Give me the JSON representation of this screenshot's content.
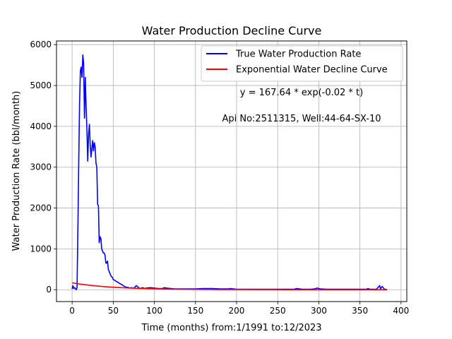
{
  "chart_data": {
    "type": "line",
    "title": "Water Production Decline Curve",
    "xlabel": "Time (months) from:1/1991 to:12/2023",
    "ylabel": "Water Production Rate (bbl/month)",
    "xlim": [
      -19,
      407
    ],
    "ylim": [
      -290,
      6090
    ],
    "xticks": [
      0,
      50,
      100,
      150,
      200,
      250,
      300,
      350,
      400
    ],
    "yticks": [
      0,
      1000,
      2000,
      3000,
      4000,
      5000,
      6000
    ],
    "grid": true,
    "legend_position": "top-right",
    "annotations": [
      "y = 167.64 * exp(-0.02 * t)",
      "Api No:2511315, Well:44-64-SX-10"
    ],
    "series": [
      {
        "name": "True Water Production Rate",
        "color": "#0000ff",
        "x": [
          0,
          1,
          2,
          3,
          4,
          5,
          6,
          7,
          8,
          9,
          10,
          11,
          12,
          13,
          14,
          15,
          16,
          17,
          18,
          19,
          20,
          21,
          22,
          23,
          24,
          25,
          26,
          27,
          28,
          29,
          30,
          31,
          32,
          33,
          34,
          35,
          36,
          37,
          38,
          39,
          40,
          41,
          42,
          43,
          44,
          45,
          46,
          47,
          48,
          49,
          50,
          52,
          54,
          56,
          58,
          60,
          62,
          64,
          66,
          68,
          70,
          72,
          74,
          76,
          78,
          80,
          82,
          84,
          86,
          88,
          90,
          95,
          100,
          105,
          110,
          112,
          115,
          120,
          125,
          130,
          140,
          150,
          160,
          170,
          180,
          190,
          192,
          200,
          220,
          250,
          270,
          273,
          280,
          290,
          295,
          298,
          302,
          310,
          330,
          350,
          358,
          360,
          362,
          370,
          374,
          375,
          377,
          380,
          383
        ],
        "values": [
          20,
          100,
          30,
          50,
          30,
          0,
          50,
          1500,
          3000,
          4500,
          5350,
          5450,
          5200,
          5750,
          5550,
          4200,
          5200,
          4500,
          3900,
          3150,
          3800,
          4050,
          3550,
          3250,
          3450,
          3650,
          3400,
          3600,
          3500,
          3100,
          3000,
          2100,
          2050,
          1150,
          1300,
          1250,
          1000,
          950,
          900,
          900,
          850,
          650,
          650,
          700,
          500,
          450,
          400,
          350,
          320,
          300,
          250,
          230,
          200,
          180,
          150,
          130,
          100,
          80,
          60,
          60,
          40,
          50,
          40,
          50,
          100,
          70,
          30,
          40,
          50,
          30,
          40,
          50,
          40,
          30,
          30,
          50,
          40,
          30,
          20,
          20,
          20,
          20,
          30,
          30,
          20,
          20,
          30,
          10,
          10,
          10,
          10,
          30,
          10,
          10,
          20,
          40,
          20,
          10,
          10,
          10,
          10,
          30,
          10,
          10,
          100,
          20,
          80,
          10,
          5
        ]
      },
      {
        "name": "Exponential Water Decline Curve",
        "color": "#ff0000",
        "x": [
          0,
          10,
          20,
          30,
          40,
          50,
          60,
          70,
          80,
          90,
          100,
          120,
          140,
          160,
          180,
          200,
          220,
          240,
          260,
          280,
          300,
          320,
          340,
          360,
          383
        ],
        "values": [
          167.64,
          137.25,
          112.37,
          92.0,
          75.32,
          61.67,
          50.49,
          41.34,
          33.84,
          27.71,
          22.69,
          15.21,
          10.19,
          6.83,
          4.58,
          3.07,
          2.06,
          1.38,
          0.92,
          0.62,
          0.41,
          0.28,
          0.19,
          0.12,
          0.08
        ]
      }
    ]
  }
}
